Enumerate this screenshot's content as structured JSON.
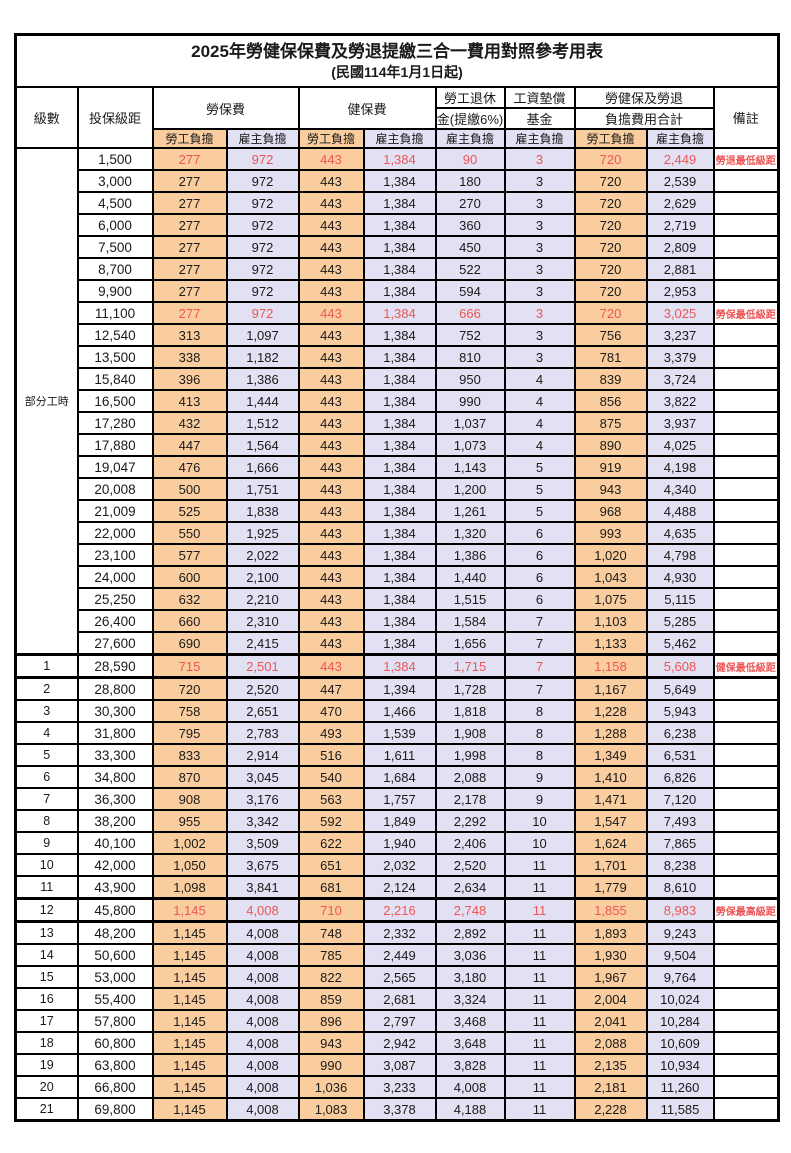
{
  "title": "2025年勞健保保費及勞退提繳三合一費用對照參考用表",
  "subtitle": "(民國114年1月1日起)",
  "header": {
    "level": "級數",
    "salary": "投保級距",
    "labor_insurance": "勞保費",
    "health_insurance": "健保費",
    "pension_line1": "勞工退休",
    "pension_line2": "金(提繳6%)",
    "wage_fund_line1": "工資墊償",
    "wage_fund_line2": "基金",
    "total_line1": "勞健保及勞退",
    "total_line2": "負擔費用合計",
    "remark": "備註",
    "employee_burden": "勞工負擔",
    "employer_burden": "雇主負擔"
  },
  "part_time_label": "部分工時",
  "colors": {
    "employee_col_bg": "#facd9e",
    "employer_col_bg": "#e2e0f3",
    "highlight_text": "#ee5555",
    "border": "#000000"
  },
  "rows": [
    {
      "level": "",
      "salary": "1,500",
      "values": [
        "277",
        "972",
        "443",
        "1,384",
        "90",
        "3",
        "720",
        "2,449"
      ],
      "remark": "勞退最低級距",
      "highlight": true
    },
    {
      "level": "",
      "salary": "3,000",
      "values": [
        "277",
        "972",
        "443",
        "1,384",
        "180",
        "3",
        "720",
        "2,539"
      ],
      "remark": "",
      "highlight": false
    },
    {
      "level": "",
      "salary": "4,500",
      "values": [
        "277",
        "972",
        "443",
        "1,384",
        "270",
        "3",
        "720",
        "2,629"
      ],
      "remark": "",
      "highlight": false
    },
    {
      "level": "",
      "salary": "6,000",
      "values": [
        "277",
        "972",
        "443",
        "1,384",
        "360",
        "3",
        "720",
        "2,719"
      ],
      "remark": "",
      "highlight": false
    },
    {
      "level": "",
      "salary": "7,500",
      "values": [
        "277",
        "972",
        "443",
        "1,384",
        "450",
        "3",
        "720",
        "2,809"
      ],
      "remark": "",
      "highlight": false
    },
    {
      "level": "",
      "salary": "8,700",
      "values": [
        "277",
        "972",
        "443",
        "1,384",
        "522",
        "3",
        "720",
        "2,881"
      ],
      "remark": "",
      "highlight": false
    },
    {
      "level": "",
      "salary": "9,900",
      "values": [
        "277",
        "972",
        "443",
        "1,384",
        "594",
        "3",
        "720",
        "2,953"
      ],
      "remark": "",
      "highlight": false
    },
    {
      "level": "",
      "salary": "11,100",
      "values": [
        "277",
        "972",
        "443",
        "1,384",
        "666",
        "3",
        "720",
        "3,025"
      ],
      "remark": "勞保最低級距",
      "highlight": true
    },
    {
      "level": "",
      "salary": "12,540",
      "values": [
        "313",
        "1,097",
        "443",
        "1,384",
        "752",
        "3",
        "756",
        "3,237"
      ],
      "remark": "",
      "highlight": false
    },
    {
      "level": "",
      "salary": "13,500",
      "values": [
        "338",
        "1,182",
        "443",
        "1,384",
        "810",
        "3",
        "781",
        "3,379"
      ],
      "remark": "",
      "highlight": false
    },
    {
      "level": "",
      "salary": "15,840",
      "values": [
        "396",
        "1,386",
        "443",
        "1,384",
        "950",
        "4",
        "839",
        "3,724"
      ],
      "remark": "",
      "highlight": false
    },
    {
      "level": "",
      "salary": "16,500",
      "values": [
        "413",
        "1,444",
        "443",
        "1,384",
        "990",
        "4",
        "856",
        "3,822"
      ],
      "remark": "",
      "highlight": false
    },
    {
      "level": "",
      "salary": "17,280",
      "values": [
        "432",
        "1,512",
        "443",
        "1,384",
        "1,037",
        "4",
        "875",
        "3,937"
      ],
      "remark": "",
      "highlight": false
    },
    {
      "level": "",
      "salary": "17,880",
      "values": [
        "447",
        "1,564",
        "443",
        "1,384",
        "1,073",
        "4",
        "890",
        "4,025"
      ],
      "remark": "",
      "highlight": false
    },
    {
      "level": "",
      "salary": "19,047",
      "values": [
        "476",
        "1,666",
        "443",
        "1,384",
        "1,143",
        "5",
        "919",
        "4,198"
      ],
      "remark": "",
      "highlight": false
    },
    {
      "level": "",
      "salary": "20,008",
      "values": [
        "500",
        "1,751",
        "443",
        "1,384",
        "1,200",
        "5",
        "943",
        "4,340"
      ],
      "remark": "",
      "highlight": false
    },
    {
      "level": "",
      "salary": "21,009",
      "values": [
        "525",
        "1,838",
        "443",
        "1,384",
        "1,261",
        "5",
        "968",
        "4,488"
      ],
      "remark": "",
      "highlight": false
    },
    {
      "level": "",
      "salary": "22,000",
      "values": [
        "550",
        "1,925",
        "443",
        "1,384",
        "1,320",
        "6",
        "993",
        "4,635"
      ],
      "remark": "",
      "highlight": false
    },
    {
      "level": "",
      "salary": "23,100",
      "values": [
        "577",
        "2,022",
        "443",
        "1,384",
        "1,386",
        "6",
        "1,020",
        "4,798"
      ],
      "remark": "",
      "highlight": false
    },
    {
      "level": "",
      "salary": "24,000",
      "values": [
        "600",
        "2,100",
        "443",
        "1,384",
        "1,440",
        "6",
        "1,043",
        "4,930"
      ],
      "remark": "",
      "highlight": false
    },
    {
      "level": "",
      "salary": "25,250",
      "values": [
        "632",
        "2,210",
        "443",
        "1,384",
        "1,515",
        "6",
        "1,075",
        "5,115"
      ],
      "remark": "",
      "highlight": false
    },
    {
      "level": "",
      "salary": "26,400",
      "values": [
        "660",
        "2,310",
        "443",
        "1,384",
        "1,584",
        "7",
        "1,103",
        "5,285"
      ],
      "remark": "",
      "highlight": false
    },
    {
      "level": "",
      "salary": "27,600",
      "values": [
        "690",
        "2,415",
        "443",
        "1,384",
        "1,656",
        "7",
        "1,133",
        "5,462"
      ],
      "remark": "",
      "highlight": false
    },
    {
      "level": "1",
      "salary": "28,590",
      "values": [
        "715",
        "2,501",
        "443",
        "1,384",
        "1,715",
        "7",
        "1,158",
        "5,608"
      ],
      "remark": "健保最低級距",
      "highlight": true
    },
    {
      "level": "2",
      "salary": "28,800",
      "values": [
        "720",
        "2,520",
        "447",
        "1,394",
        "1,728",
        "7",
        "1,167",
        "5,649"
      ],
      "remark": "",
      "highlight": false
    },
    {
      "level": "3",
      "salary": "30,300",
      "values": [
        "758",
        "2,651",
        "470",
        "1,466",
        "1,818",
        "8",
        "1,228",
        "5,943"
      ],
      "remark": "",
      "highlight": false
    },
    {
      "level": "4",
      "salary": "31,800",
      "values": [
        "795",
        "2,783",
        "493",
        "1,539",
        "1,908",
        "8",
        "1,288",
        "6,238"
      ],
      "remark": "",
      "highlight": false
    },
    {
      "level": "5",
      "salary": "33,300",
      "values": [
        "833",
        "2,914",
        "516",
        "1,611",
        "1,998",
        "8",
        "1,349",
        "6,531"
      ],
      "remark": "",
      "highlight": false
    },
    {
      "level": "6",
      "salary": "34,800",
      "values": [
        "870",
        "3,045",
        "540",
        "1,684",
        "2,088",
        "9",
        "1,410",
        "6,826"
      ],
      "remark": "",
      "highlight": false
    },
    {
      "level": "7",
      "salary": "36,300",
      "values": [
        "908",
        "3,176",
        "563",
        "1,757",
        "2,178",
        "9",
        "1,471",
        "7,120"
      ],
      "remark": "",
      "highlight": false
    },
    {
      "level": "8",
      "salary": "38,200",
      "values": [
        "955",
        "3,342",
        "592",
        "1,849",
        "2,292",
        "10",
        "1,547",
        "7,493"
      ],
      "remark": "",
      "highlight": false
    },
    {
      "level": "9",
      "salary": "40,100",
      "values": [
        "1,002",
        "3,509",
        "622",
        "1,940",
        "2,406",
        "10",
        "1,624",
        "7,865"
      ],
      "remark": "",
      "highlight": false
    },
    {
      "level": "10",
      "salary": "42,000",
      "values": [
        "1,050",
        "3,675",
        "651",
        "2,032",
        "2,520",
        "11",
        "1,701",
        "8,238"
      ],
      "remark": "",
      "highlight": false
    },
    {
      "level": "11",
      "salary": "43,900",
      "values": [
        "1,098",
        "3,841",
        "681",
        "2,124",
        "2,634",
        "11",
        "1,779",
        "8,610"
      ],
      "remark": "",
      "highlight": false
    },
    {
      "level": "12",
      "salary": "45,800",
      "values": [
        "1,145",
        "4,008",
        "710",
        "2,216",
        "2,748",
        "11",
        "1,855",
        "8,983"
      ],
      "remark": "勞保最高級距",
      "highlight": true
    },
    {
      "level": "13",
      "salary": "48,200",
      "values": [
        "1,145",
        "4,008",
        "748",
        "2,332",
        "2,892",
        "11",
        "1,893",
        "9,243"
      ],
      "remark": "",
      "highlight": false
    },
    {
      "level": "14",
      "salary": "50,600",
      "values": [
        "1,145",
        "4,008",
        "785",
        "2,449",
        "3,036",
        "11",
        "1,930",
        "9,504"
      ],
      "remark": "",
      "highlight": false
    },
    {
      "level": "15",
      "salary": "53,000",
      "values": [
        "1,145",
        "4,008",
        "822",
        "2,565",
        "3,180",
        "11",
        "1,967",
        "9,764"
      ],
      "remark": "",
      "highlight": false
    },
    {
      "level": "16",
      "salary": "55,400",
      "values": [
        "1,145",
        "4,008",
        "859",
        "2,681",
        "3,324",
        "11",
        "2,004",
        "10,024"
      ],
      "remark": "",
      "highlight": false
    },
    {
      "level": "17",
      "salary": "57,800",
      "values": [
        "1,145",
        "4,008",
        "896",
        "2,797",
        "3,468",
        "11",
        "2,041",
        "10,284"
      ],
      "remark": "",
      "highlight": false
    },
    {
      "level": "18",
      "salary": "60,800",
      "values": [
        "1,145",
        "4,008",
        "943",
        "2,942",
        "3,648",
        "11",
        "2,088",
        "10,609"
      ],
      "remark": "",
      "highlight": false
    },
    {
      "level": "19",
      "salary": "63,800",
      "values": [
        "1,145",
        "4,008",
        "990",
        "3,087",
        "3,828",
        "11",
        "2,135",
        "10,934"
      ],
      "remark": "",
      "highlight": false
    },
    {
      "level": "20",
      "salary": "66,800",
      "values": [
        "1,145",
        "4,008",
        "1,036",
        "3,233",
        "4,008",
        "11",
        "2,181",
        "11,260"
      ],
      "remark": "",
      "highlight": false
    },
    {
      "level": "21",
      "salary": "69,800",
      "values": [
        "1,145",
        "4,008",
        "1,083",
        "3,378",
        "4,188",
        "11",
        "2,228",
        "11,585"
      ],
      "remark": "",
      "highlight": false
    }
  ]
}
